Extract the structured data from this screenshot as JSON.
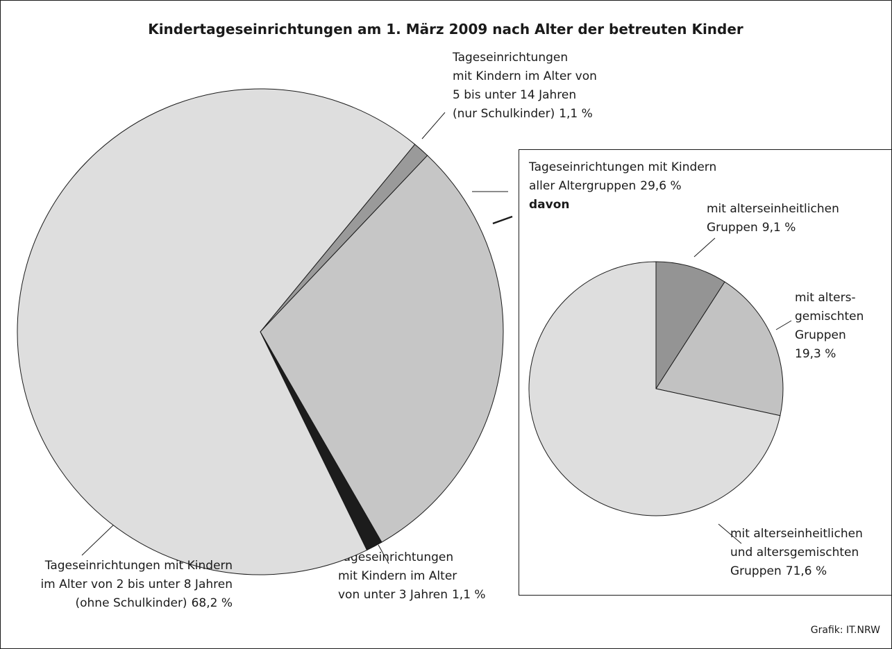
{
  "chart_data": [
    {
      "type": "pie",
      "title": "Kindertageseinrichtungen am 1. März 2009 nach Alter der betreuten Kinder",
      "source": "Grafik: IT.NRW",
      "categories": [
        [
          "Tageseinrichtungen",
          "mit Kindern im Alter von",
          "5 bis unter 14 Jahren",
          "(nur Schulkinder)"
        ],
        [
          "Tageseinrichtungen mit Kindern",
          "aller Altergruppen"
        ],
        [
          "Tageseinrichtungen",
          "mit Kindern im Alter",
          "von unter 3 Jahren"
        ],
        [
          "Tageseinrichtungen mit Kindern",
          "im Alter von 2 bis unter 8 Jahren",
          "(ohne Schulkinder)"
        ]
      ],
      "values": [
        1.1,
        29.6,
        1.1,
        68.2
      ],
      "value_labels": [
        "1,1 %",
        "29,6 %",
        "1,1 %",
        "68,2 %"
      ],
      "colors": [
        "#9a9a9a",
        "#c6c6c6",
        "#1c1c1c",
        "#dedede"
      ]
    },
    {
      "type": "pie",
      "title": "davon",
      "categories": [
        [
          "mit alterseinheitlichen",
          "Gruppen"
        ],
        [
          "mit alters-",
          "gemischten",
          "Gruppen",
          ""
        ],
        [
          "mit alterseinheitlichen",
          "und altersgemischten",
          "Gruppen"
        ]
      ],
      "values": [
        9.1,
        19.3,
        71.6
      ],
      "value_labels": [
        "9,1 %",
        "19,3 %",
        "71,6 %"
      ],
      "colors": [
        "#949494",
        "#c2c2c2",
        "#dedede"
      ]
    }
  ]
}
